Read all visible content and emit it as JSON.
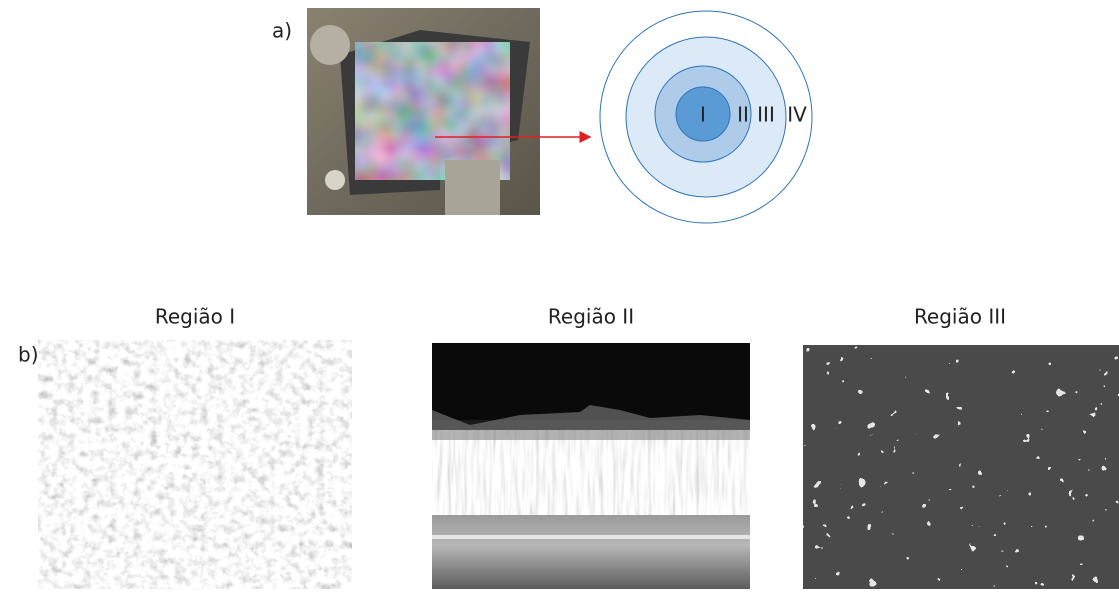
{
  "panel_a": {
    "label": "a)",
    "regions": [
      "I",
      "II",
      "III",
      "IV"
    ]
  },
  "panel_b": {
    "label": "b)",
    "images": [
      {
        "title": "Região I"
      },
      {
        "title": "Região II"
      },
      {
        "title": "Região III"
      }
    ]
  }
}
